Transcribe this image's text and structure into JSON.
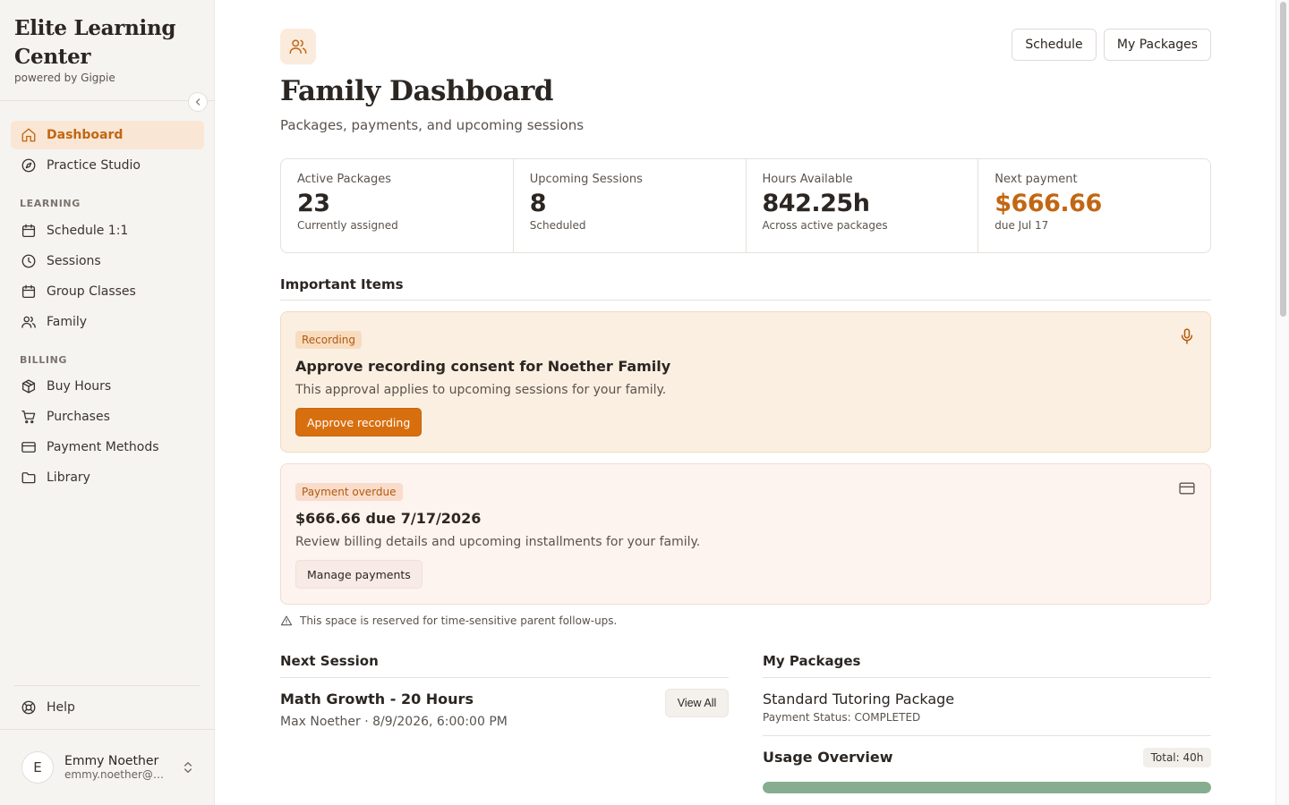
{
  "brand": {
    "title": "Elite Learning Center",
    "subtitle": "powered by Gigpie"
  },
  "sidebar": {
    "collapse_icon": "chevron-left-icon",
    "primary": [
      {
        "label": "Dashboard",
        "icon": "home-icon",
        "active": true
      },
      {
        "label": "Practice Studio",
        "icon": "compass-icon"
      }
    ],
    "learning_heading": "LEARNING",
    "learning": [
      {
        "label": "Schedule 1:1",
        "icon": "calendar-icon"
      },
      {
        "label": "Sessions",
        "icon": "clock-icon"
      },
      {
        "label": "Group Classes",
        "icon": "calendar-icon"
      },
      {
        "label": "Family",
        "icon": "users-icon"
      }
    ],
    "billing_heading": "BILLING",
    "billing": [
      {
        "label": "Buy Hours",
        "icon": "package-icon"
      },
      {
        "label": "Purchases",
        "icon": "cart-icon"
      },
      {
        "label": "Payment Methods",
        "icon": "credit-card-icon"
      },
      {
        "label": "Library",
        "icon": "folder-icon"
      }
    ],
    "help": {
      "label": "Help",
      "icon": "lifebuoy-icon"
    },
    "user": {
      "initial": "E",
      "name": "Emmy Noether",
      "email": "emmy.noether@ex..."
    }
  },
  "header": {
    "icon": "users-icon",
    "title": "Family Dashboard",
    "subtitle": "Packages, payments, and upcoming sessions",
    "buttons": {
      "schedule": "Schedule",
      "packages": "My Packages"
    }
  },
  "stats": [
    {
      "label": "Active Packages",
      "value": "23",
      "note": "Currently assigned"
    },
    {
      "label": "Upcoming Sessions",
      "value": "8",
      "note": "Scheduled"
    },
    {
      "label": "Hours Available",
      "value": "842.25h",
      "note": "Across active packages"
    },
    {
      "label": "Next payment",
      "value": "$666.66",
      "note": "due Jul 17",
      "accent": "#c26612"
    }
  ],
  "important": {
    "title": "Important Items",
    "recording": {
      "tag": "Recording",
      "title": "Approve recording consent for Noether Family",
      "description": "This approval applies to upcoming sessions for your family.",
      "button": "Approve recording",
      "icon": "microphone-icon"
    },
    "payment": {
      "tag": "Payment overdue",
      "title": "$666.66 due 7/17/2026",
      "description": "Review billing details and upcoming installments for your family.",
      "button": "Manage payments",
      "icon": "credit-card-icon"
    },
    "reserved_note": "This space is reserved for time-sensitive parent follow-ups.",
    "reserved_icon": "warning-icon"
  },
  "next_session": {
    "title": "Next Session",
    "name": "Math Growth - 20 Hours",
    "meta": "Max Noether · 8/9/2026, 6:00:00 PM",
    "view_all": "View All"
  },
  "packages": {
    "title": "My Packages",
    "name": "Standard Tutoring Package",
    "status": "Payment Status: COMPLETED",
    "usage_title": "Usage Overview",
    "usage_total": "Total: 40h",
    "usage_fraction": 1.0,
    "usage_color": "#86ad8f"
  }
}
